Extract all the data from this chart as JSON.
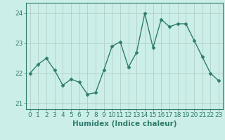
{
  "title": "",
  "xlabel": "Humidex (Indice chaleur)",
  "ylabel": "",
  "x_values": [
    0,
    1,
    2,
    3,
    4,
    5,
    6,
    7,
    8,
    9,
    10,
    11,
    12,
    13,
    14,
    15,
    16,
    17,
    18,
    19,
    20,
    21,
    22,
    23
  ],
  "y_values": [
    22.0,
    22.3,
    22.5,
    22.1,
    21.6,
    21.8,
    21.7,
    21.3,
    21.35,
    22.1,
    22.9,
    23.05,
    22.2,
    22.7,
    24.0,
    22.85,
    23.8,
    23.55,
    23.65,
    23.65,
    23.1,
    22.55,
    22.0,
    21.75
  ],
  "line_color": "#2e7d6e",
  "marker": "D",
  "marker_size": 2.5,
  "ylim": [
    20.8,
    24.35
  ],
  "yticks": [
    21,
    22,
    23,
    24
  ],
  "xticks": [
    0,
    1,
    2,
    3,
    4,
    5,
    6,
    7,
    8,
    9,
    10,
    11,
    12,
    13,
    14,
    15,
    16,
    17,
    18,
    19,
    20,
    21,
    22,
    23
  ],
  "background_color": "#cceee8",
  "grid_color": "#b0c8c4",
  "line_width": 1.0,
  "tick_label_fontsize": 6.5,
  "xlabel_fontsize": 7.5
}
